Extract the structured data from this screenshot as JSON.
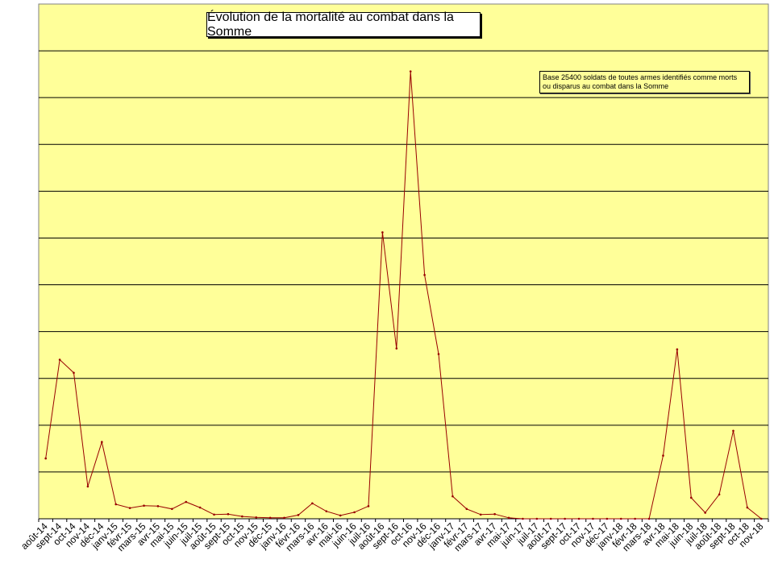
{
  "chart_data": {
    "type": "line",
    "title": "Évolution de la mortalité au combat dans la Somme",
    "annotation": "Base 25400 soldats de toutes armes identifiés comme morts ou disparus au combat dans la Somme",
    "categories": [
      "août-14",
      "sept-14",
      "oct-14",
      "nov-14",
      "déc-14",
      "janv-15",
      "févr-15",
      "mars-15",
      "avr-15",
      "mai-15",
      "juin-15",
      "juil-15",
      "août-15",
      "sept-15",
      "oct-15",
      "nov-15",
      "déc-15",
      "janv-16",
      "févr-16",
      "mars-16",
      "avr-16",
      "mai-16",
      "juin-16",
      "juil-16",
      "août-16",
      "sept-16",
      "oct-16",
      "nov-16",
      "déc-16",
      "janv-17",
      "févr-17",
      "mars-17",
      "avr-17",
      "mai-17",
      "juin-17",
      "juil-17",
      "août-17",
      "sept-17",
      "oct-17",
      "nov-17",
      "déc-17",
      "janv-18",
      "févr-18",
      "mars-18",
      "avr-18",
      "mai-18",
      "juin-18",
      "juil-18",
      "août-18",
      "sept-18",
      "oct-18",
      "nov-18"
    ],
    "values": [
      1.29,
      3.4,
      3.12,
      0.69,
      1.64,
      0.31,
      0.23,
      0.28,
      0.27,
      0.21,
      0.36,
      0.24,
      0.09,
      0.1,
      0.05,
      0.03,
      0.02,
      0.02,
      0.08,
      0.33,
      0.16,
      0.07,
      0.14,
      0.27,
      6.12,
      3.64,
      9.56,
      5.21,
      3.52,
      0.48,
      0.21,
      0.09,
      0.1,
      0.02,
      0.0,
      0.0,
      0.0,
      0.0,
      0.0,
      0.0,
      0.0,
      0.0,
      0.0,
      0.0,
      1.35,
      3.62,
      0.45,
      0.13,
      0.52,
      1.88,
      0.24,
      0.0
    ],
    "ylim": [
      0,
      11
    ],
    "y_ticks_count": 11,
    "grid": true,
    "line_color": "#990000",
    "plot_bg": "#ffff99"
  }
}
